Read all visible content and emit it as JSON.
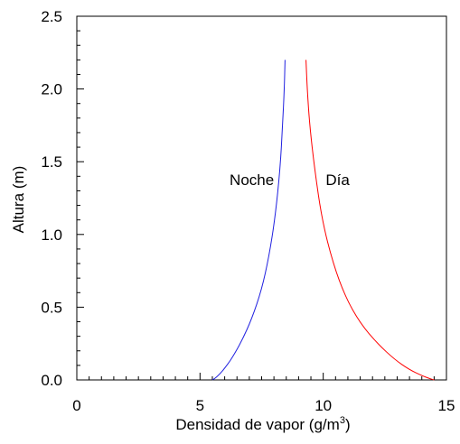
{
  "chart_data": {
    "type": "line",
    "xlabel": "Densidad de vapor (g/m",
    "xlabel_superscript": "3",
    "xlabel_suffix": ")",
    "ylabel": "Altura (m)",
    "xlim": [
      0,
      15
    ],
    "ylim": [
      0,
      2.5
    ],
    "x_ticks": [
      "0",
      "5",
      "10",
      "15"
    ],
    "x_tick_values": [
      0,
      5,
      10,
      15
    ],
    "y_ticks": [
      "0.0",
      "0.5",
      "1.0",
      "1.5",
      "2.0",
      "2.5"
    ],
    "y_tick_values": [
      0,
      0.5,
      1.0,
      1.5,
      2.0,
      2.5
    ],
    "grid": false,
    "series": [
      {
        "name": "Noche",
        "color": "#2020e0",
        "x": [
          5.5,
          5.6,
          5.8,
          6.0,
          6.3,
          6.7,
          7.1,
          7.5,
          7.8,
          8.05,
          8.25,
          8.35,
          8.42,
          8.45
        ],
        "y": [
          0.0,
          0.01,
          0.04,
          0.08,
          0.15,
          0.27,
          0.42,
          0.62,
          0.85,
          1.12,
          1.45,
          1.75,
          2.0,
          2.2
        ]
      },
      {
        "name": "Día",
        "color": "#ff0000",
        "x": [
          14.5,
          14.3,
          14.0,
          13.5,
          12.9,
          12.2,
          11.5,
          10.9,
          10.4,
          9.95,
          9.65,
          9.45,
          9.35,
          9.3
        ],
        "y": [
          0.0,
          0.01,
          0.03,
          0.07,
          0.14,
          0.25,
          0.39,
          0.57,
          0.8,
          1.1,
          1.45,
          1.75,
          2.0,
          2.2
        ]
      }
    ],
    "annotations": [
      {
        "text": "Noche",
        "x": 6.2,
        "y": 1.34
      },
      {
        "text": "Día",
        "x": 10.1,
        "y": 1.34
      }
    ]
  }
}
